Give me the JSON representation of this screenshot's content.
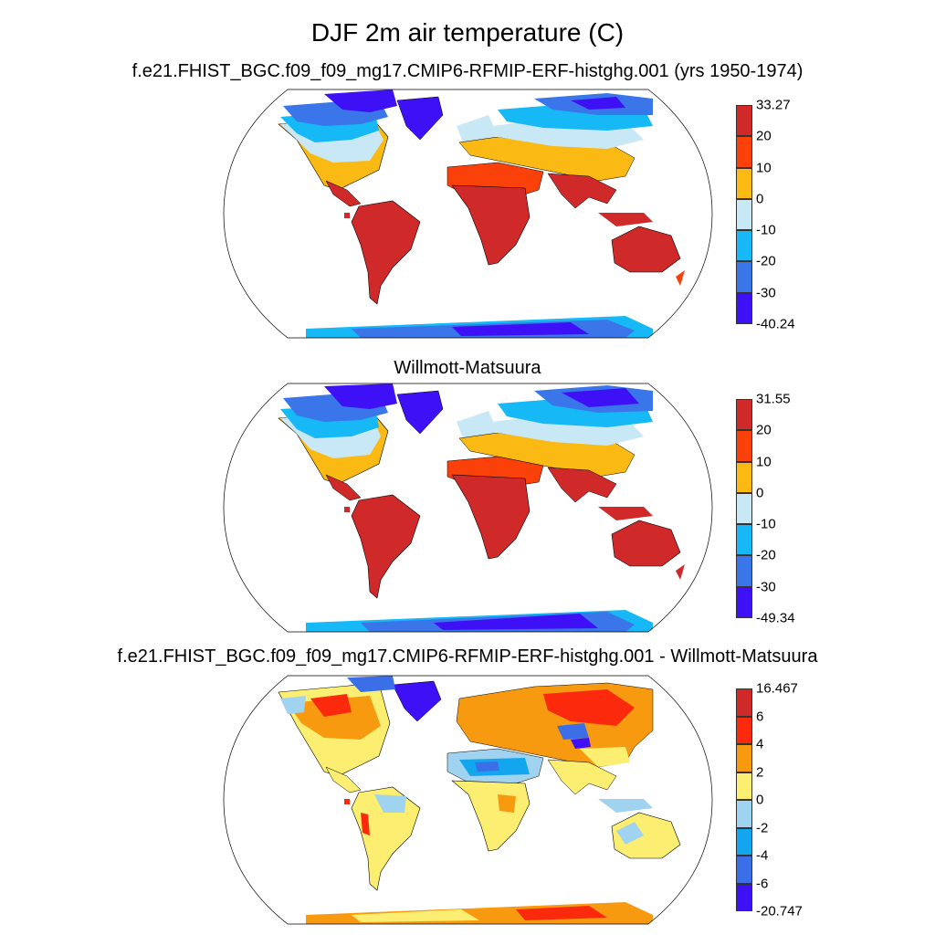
{
  "title": "DJF 2m air temperature (C)",
  "panels": [
    {
      "subtitle": "f.e21.FHIST_BGC.f09_f09_mg17.CMIP6-RFMIP-ERF-histghg.001 (yrs 1950-1974)",
      "colorbar": {
        "colors": [
          "#3d10f5",
          "#3a75ea",
          "#16b9f5",
          "#c9e8f5",
          "#fbb913",
          "#fb410a",
          "#d02929"
        ],
        "labels": [
          "-40.24",
          "-30",
          "-20",
          "-10",
          "0",
          "10",
          "20",
          "33.27"
        ]
      }
    },
    {
      "subtitle": "Willmott-Matsuura",
      "colorbar": {
        "colors": [
          "#3d10f5",
          "#3a75ea",
          "#16b9f5",
          "#c9e8f5",
          "#fbb913",
          "#fb410a",
          "#d02929"
        ],
        "labels": [
          "-49.34",
          "-30",
          "-20",
          "-10",
          "0",
          "10",
          "20",
          "31.55"
        ]
      }
    },
    {
      "subtitle": "f.e21.FHIST_BGC.f09_f09_mg17.CMIP6-RFMIP-ERF-histghg.001 - Willmott-Matsuura",
      "colorbar": {
        "colors": [
          "#3d10f5",
          "#3a6fe8",
          "#12a6ef",
          "#9fd3ef",
          "#fbee71",
          "#f89a10",
          "#fb2a0c",
          "#d02929"
        ],
        "labels": [
          "-20.747",
          "-6",
          "-4",
          "-2",
          "0",
          "2",
          "4",
          "6",
          "16.467"
        ]
      }
    }
  ]
}
